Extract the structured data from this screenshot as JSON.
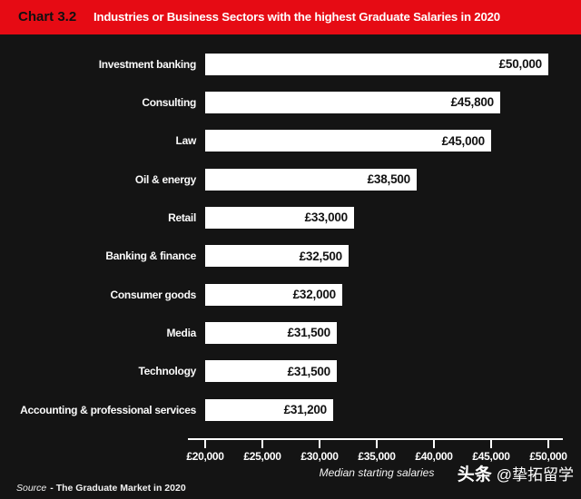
{
  "header": {
    "tag": "Chart 3.2",
    "title": "Industries or Business Sectors with the highest Graduate Salaries in 2020"
  },
  "chart_data": {
    "type": "bar",
    "orientation": "horizontal",
    "title": "Industries or Business Sectors with the highest Graduate Salaries in 2020",
    "categories": [
      "Investment banking",
      "Consulting",
      "Law",
      "Oil & energy",
      "Retail",
      "Banking & finance",
      "Consumer goods",
      "Media",
      "Technology",
      "Accounting & professional services"
    ],
    "values": [
      50000,
      45800,
      45000,
      38500,
      33000,
      32500,
      32000,
      31500,
      31500,
      31200
    ],
    "value_labels": [
      "£50,000",
      "£45,800",
      "£45,000",
      "£38,500",
      "£33,000",
      "£32,500",
      "£32,000",
      "£31,500",
      "£31,500",
      "£31,200"
    ],
    "xlabel": "Median starting salaries",
    "x_ticks": [
      "£20,000",
      "£25,000",
      "£30,000",
      "£35,000",
      "£40,000",
      "£45,000",
      "£50,000"
    ],
    "x_tick_values": [
      20000,
      25000,
      30000,
      35000,
      40000,
      45000,
      50000
    ],
    "xlim": [
      20000,
      50000
    ],
    "grid": false,
    "legend": false,
    "bar_color": "#ffffff",
    "value_label_color": "#121212"
  },
  "footer": {
    "source_prefix": "Source",
    "source_text": "- The Graduate Market in 2020",
    "watermark_brand": "头条",
    "watermark_handle": "@挚拓留学"
  },
  "colors": {
    "background": "#141414",
    "header_bg": "#e60b14",
    "header_tag_text": "#101010",
    "header_title_text": "#ffffff",
    "bar_fill": "#ffffff",
    "axis": "#ffffff",
    "label_text": "#fafafa"
  }
}
